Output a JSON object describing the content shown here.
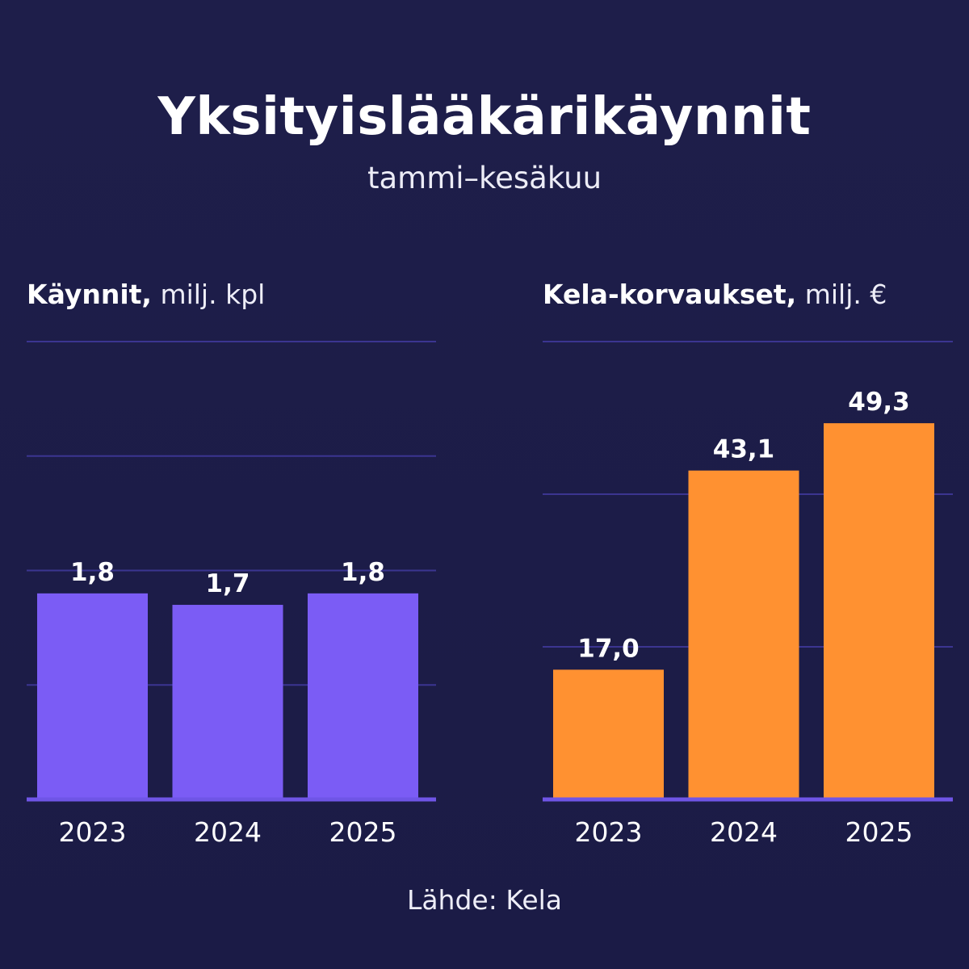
{
  "title": "Yksityislääkärikäynnit",
  "subtitle": "tammi–kesäkuu",
  "source": "Lähde: Kela",
  "colors": {
    "background": "#1c1c48",
    "gridline": "#3b3591",
    "baseline": "#6f55e6",
    "left_bars": "#7b5cf5",
    "right_bars": "#ff9131",
    "text": "#ffffff"
  },
  "chart_data": [
    {
      "type": "bar",
      "title_strong": "Käynnit,",
      "title_unit": "milj. kpl",
      "categories": [
        "2023",
        "2024",
        "2025"
      ],
      "values": [
        1.8,
        1.7,
        1.8
      ],
      "value_labels": [
        "1,8",
        "1,7",
        "1,8"
      ],
      "ylim": [
        0,
        4
      ],
      "grid": true
    },
    {
      "type": "bar",
      "title_strong": "Kela-korvaukset,",
      "title_unit": "milj. €",
      "categories": [
        "2023",
        "2024",
        "2025"
      ],
      "values": [
        17.0,
        43.1,
        49.3
      ],
      "value_labels": [
        "17,0",
        "43,1",
        "49,3"
      ],
      "ylim": [
        0,
        60
      ],
      "grid": true
    }
  ]
}
